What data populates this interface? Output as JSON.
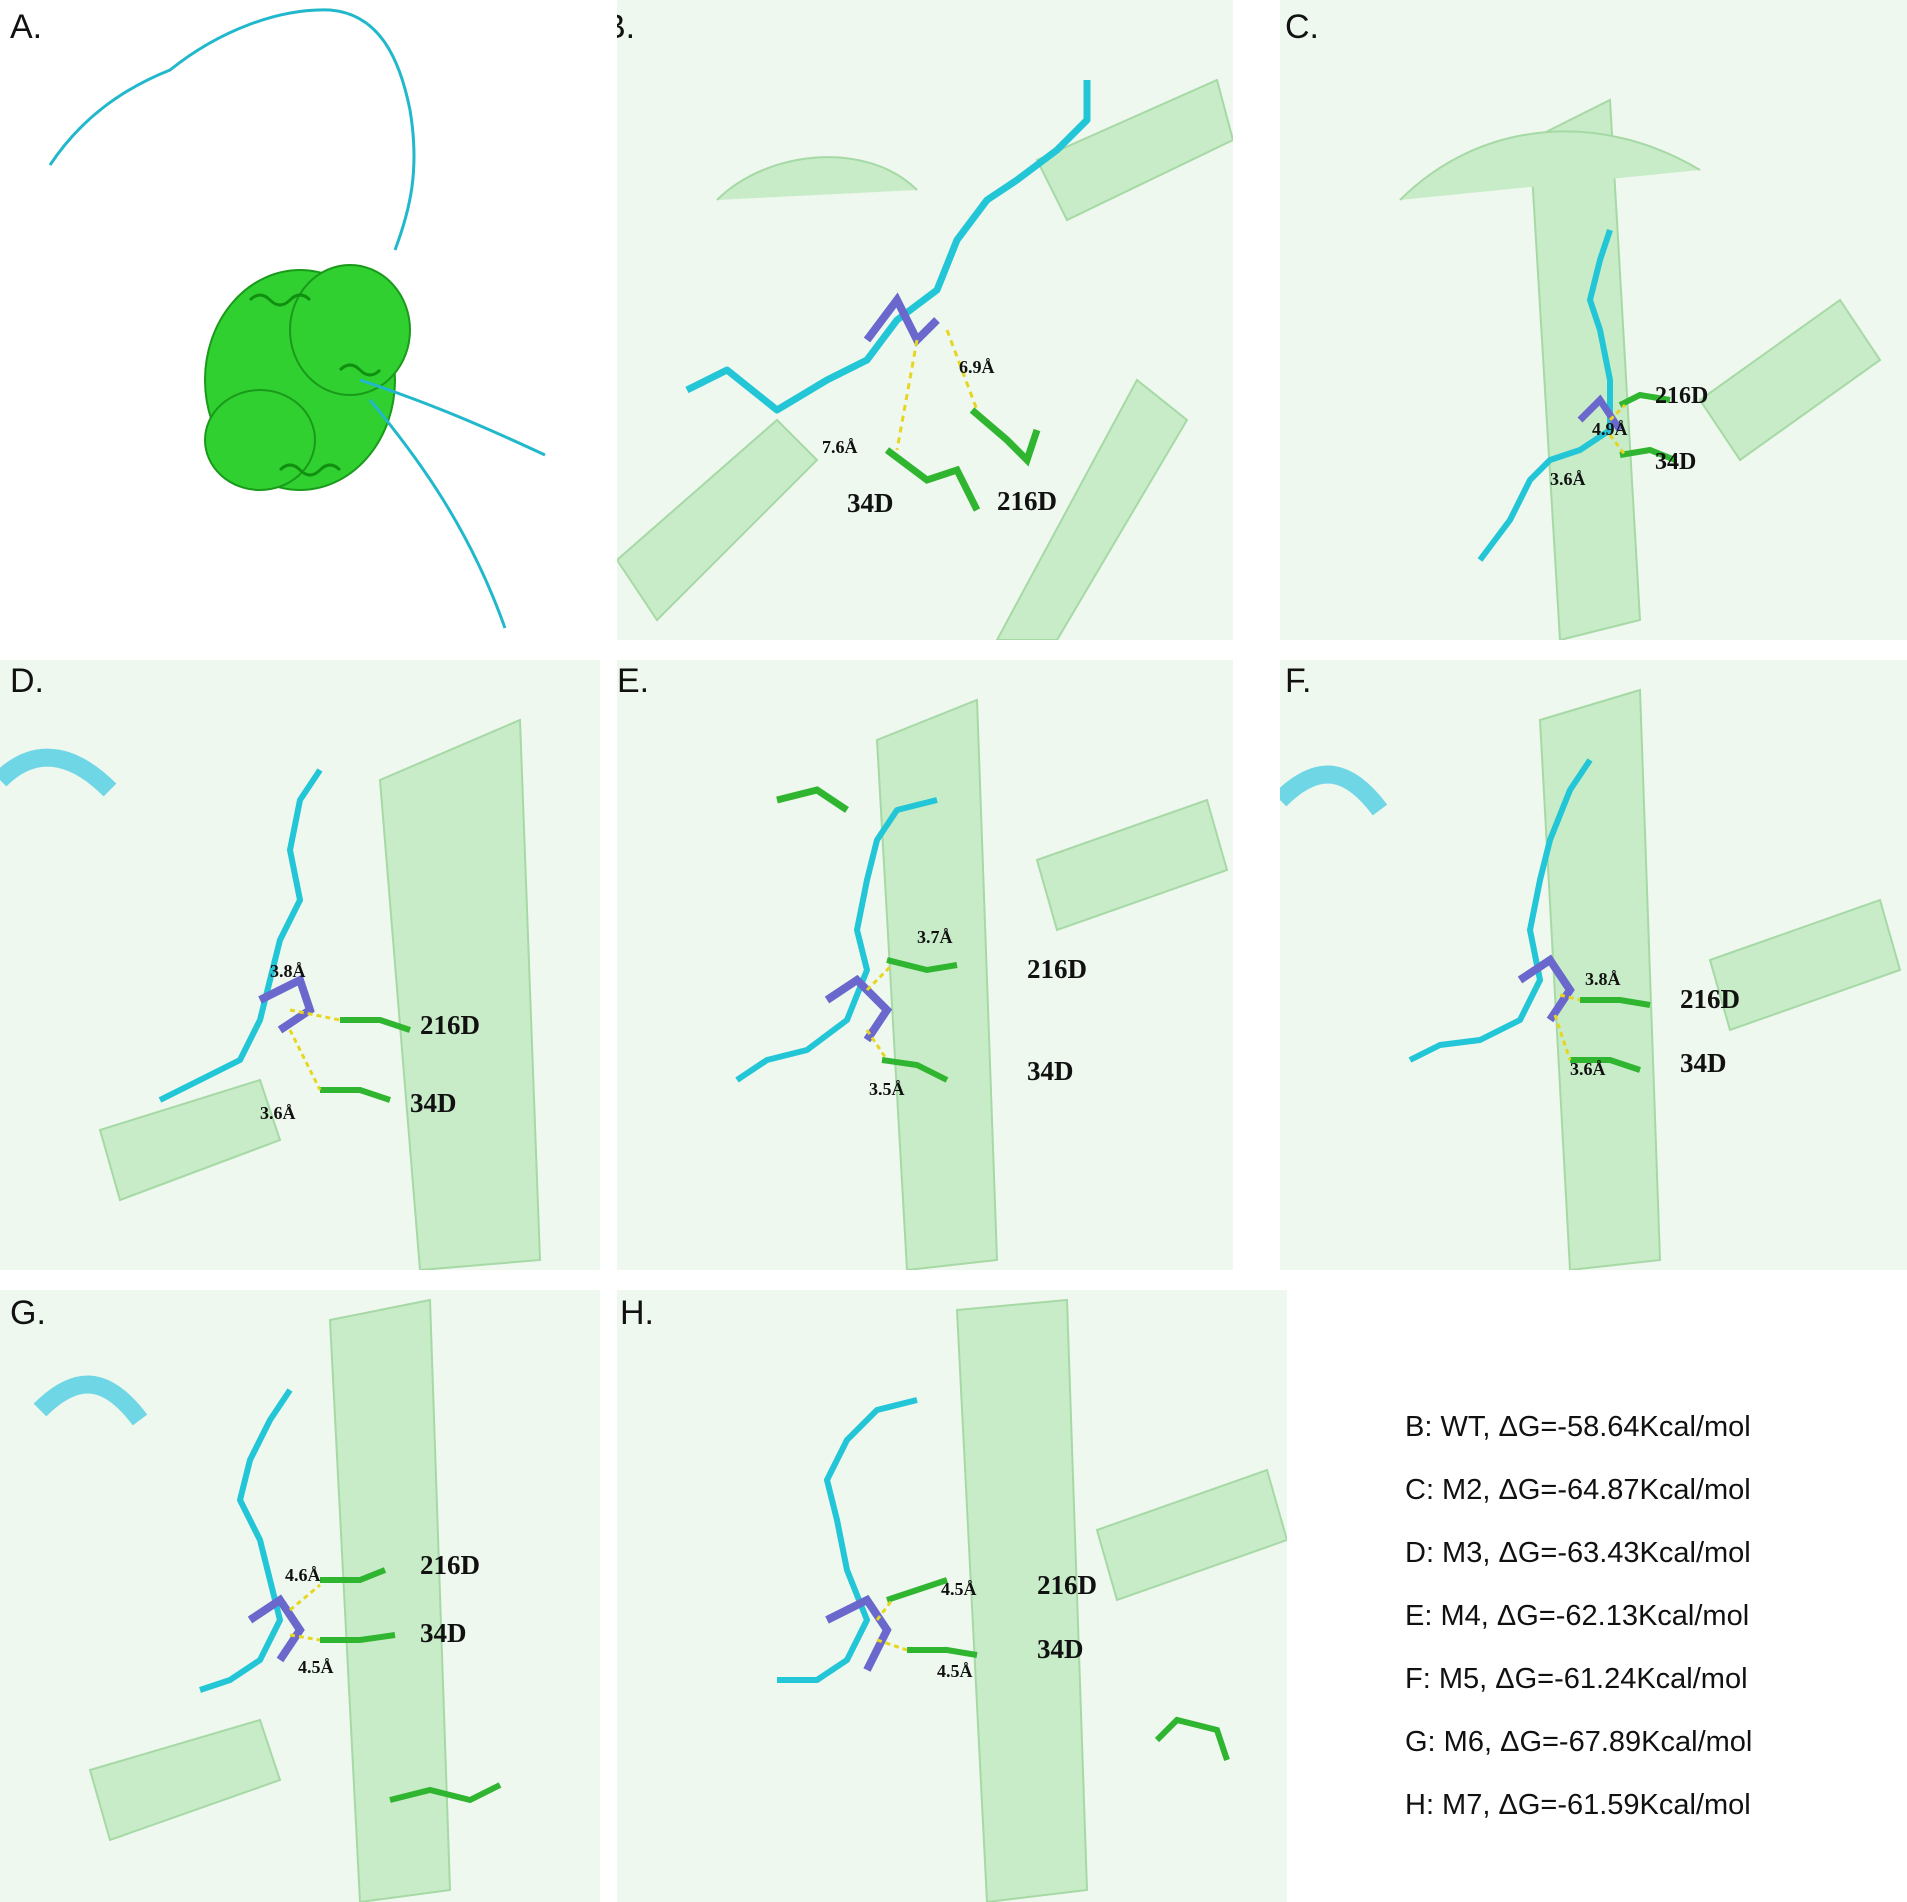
{
  "panels": [
    {
      "letter": "A."
    },
    {
      "letter": "B.",
      "residues": [
        "34D",
        "216D"
      ],
      "distances": [
        "7.6Å",
        "6.9Å"
      ]
    },
    {
      "letter": "C.",
      "residues": [
        "216D",
        "34D"
      ],
      "distances": [
        "4.9Å",
        "3.6Å"
      ]
    },
    {
      "letter": "D.",
      "residues": [
        "216D",
        "34D"
      ],
      "distances": [
        "3.8Å",
        "3.6Å"
      ]
    },
    {
      "letter": "E.",
      "residues": [
        "216D",
        "34D"
      ],
      "distances": [
        "3.7Å",
        "3.5Å"
      ]
    },
    {
      "letter": "F.",
      "residues": [
        "216D",
        "34D"
      ],
      "distances": [
        "3.8Å",
        "3.6Å"
      ]
    },
    {
      "letter": "G.",
      "residues": [
        "216D",
        "34D"
      ],
      "distances": [
        "4.6Å",
        "4.5Å"
      ]
    },
    {
      "letter": "H.",
      "residues": [
        "216D",
        "34D"
      ],
      "distances": [
        "4.5Å",
        "4.5Å"
      ]
    }
  ],
  "legend": [
    "B: WT, ΔG=-58.64Kcal/mol",
    "C: M2, ΔG=-64.87Kcal/mol",
    "D: M3, ΔG=-63.43Kcal/mol",
    "E: M4, ΔG=-62.13Kcal/mol",
    "F: M5, ΔG=-61.24Kcal/mol",
    "G: M6, ΔG=-67.89Kcal/mol",
    "H: M7, ΔG=-61.59Kcal/mol"
  ],
  "colors": {
    "protein": "#22cc22",
    "protein_faded": "#bfe9bf",
    "peptide": "#22c6d6",
    "peptide_highlight": "#6a68cc",
    "residue": "#2fb52f",
    "oxygen": "#e0382a",
    "nitrogen": "#2447d6",
    "hbond": "#e6d622"
  }
}
